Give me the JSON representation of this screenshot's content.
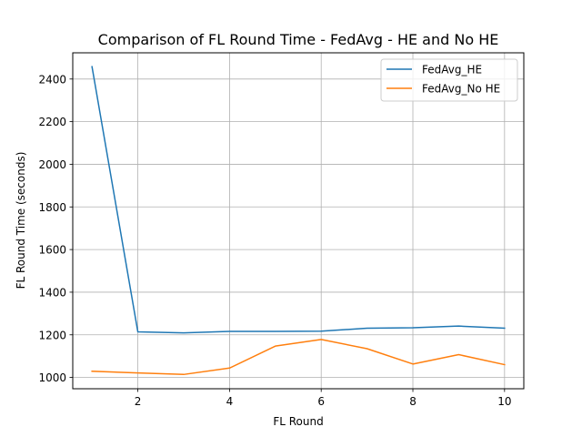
{
  "chart_data": {
    "type": "line",
    "title": "Comparison of FL Round Time - FedAvg - HE and No HE",
    "xlabel": "FL Round",
    "ylabel": "FL Round Time (seconds)",
    "x": [
      1,
      2,
      3,
      4,
      5,
      6,
      7,
      8,
      9,
      10
    ],
    "xlim": [
      0.58,
      10.42
    ],
    "ylim": [
      947,
      2523
    ],
    "xticks": [
      2,
      4,
      6,
      8,
      10
    ],
    "yticks": [
      1000,
      1200,
      1400,
      1600,
      1800,
      2000,
      2200,
      2400
    ],
    "grid": true,
    "legend_position": "top-right",
    "series": [
      {
        "name": "FedAvg_HE",
        "color": "#1f77b4",
        "values": [
          2458,
          1214,
          1209,
          1216,
          1216,
          1217,
          1231,
          1233,
          1241,
          1231
        ]
      },
      {
        "name": "FedAvg_No HE",
        "color": "#ff7f0e",
        "values": [
          1029,
          1021,
          1014,
          1044,
          1147,
          1178,
          1135,
          1063,
          1107,
          1060
        ]
      }
    ]
  }
}
